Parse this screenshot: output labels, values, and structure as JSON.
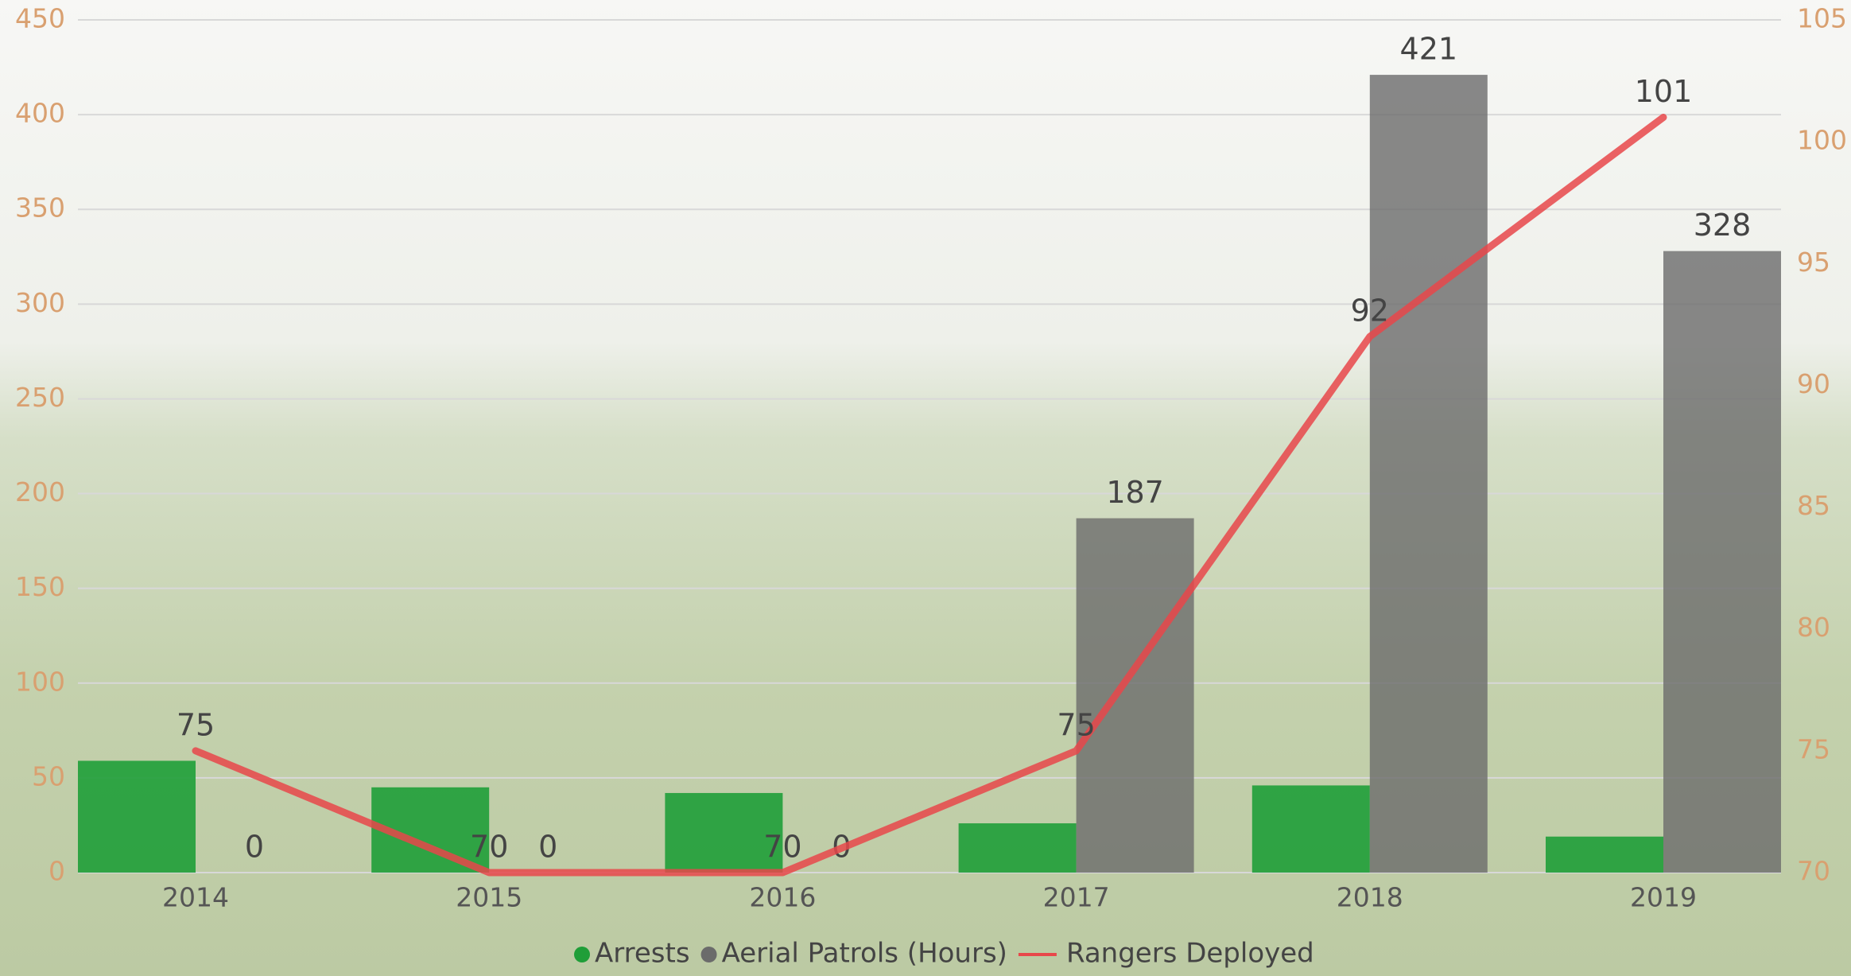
{
  "chart_data": {
    "type": "bar",
    "categories": [
      "2014",
      "2015",
      "2016",
      "2017",
      "2018",
      "2019"
    ],
    "series": [
      {
        "name": "Arrests",
        "color": "#1f9e38",
        "values": [
          59,
          45,
          42,
          26,
          46,
          19
        ]
      },
      {
        "name": "Aerial Patrols (Hours)",
        "color": "#6b6b6b",
        "values": [
          0,
          0,
          0,
          187,
          421,
          328
        ]
      },
      {
        "name": "Rangers Deployed",
        "type": "line",
        "axis": "y2",
        "color": "#e8474a",
        "values": [
          75,
          70,
          70,
          75,
          92,
          101
        ]
      }
    ],
    "ylim": [
      0,
      450
    ],
    "yticks": [
      0,
      50,
      100,
      150,
      200,
      250,
      300,
      350,
      400,
      450
    ],
    "y2lim": [
      70,
      105
    ],
    "y2ticks": [
      70,
      75,
      80,
      85,
      90,
      95,
      100,
      105
    ],
    "grid": true,
    "legend": "bottom"
  }
}
